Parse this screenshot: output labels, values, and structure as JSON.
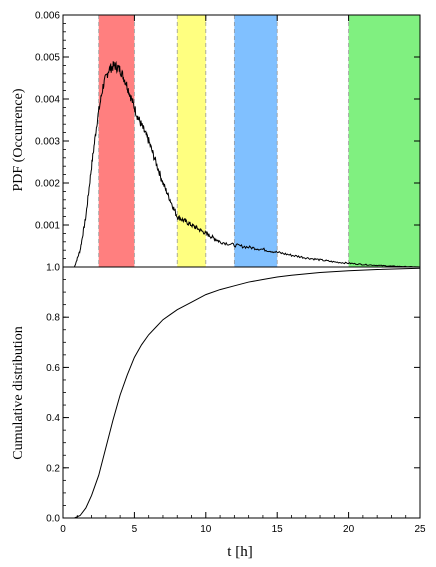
{
  "chart_data": [
    {
      "type": "line",
      "panel": "top",
      "ylabel": "PDF (Occurrence)",
      "xlabel": "",
      "xlim": [
        0,
        25
      ],
      "ylim": [
        0,
        0.006
      ],
      "yticks": [
        0.001,
        0.002,
        0.003,
        0.004,
        0.005,
        0.006
      ],
      "ytick_labels": [
        "0.001",
        "0.002",
        "0.003",
        "0.004",
        "0.005",
        "0.006"
      ],
      "bands": [
        {
          "x0": 2.5,
          "x1": 5.0,
          "color": "#ff7f7f"
        },
        {
          "x0": 8.0,
          "x1": 10.0,
          "color": "#ffff80"
        },
        {
          "x0": 12.0,
          "x1": 15.0,
          "color": "#80c0ff"
        },
        {
          "x0": 20.0,
          "x1": 25.0,
          "color": "#80f080"
        }
      ],
      "series": [
        {
          "x": [
            0.8,
            1.2,
            1.6,
            2.0,
            2.4,
            2.8,
            3.2,
            3.6,
            4.0,
            4.4,
            4.8,
            5.2,
            5.6,
            6.0,
            6.5,
            7.0,
            7.5,
            8.0,
            8.5,
            9.0,
            9.5,
            10.0,
            10.5,
            11.0,
            12.0,
            13.0,
            14.0,
            15.0,
            16.0,
            17.0,
            18.0,
            19.0,
            20.0,
            21.0,
            22.0,
            23.0,
            24.0,
            25.0
          ],
          "y": [
            0.0,
            0.0004,
            0.0012,
            0.0024,
            0.0035,
            0.0043,
            0.0047,
            0.0048,
            0.0047,
            0.0044,
            0.004,
            0.0036,
            0.0033,
            0.003,
            0.0025,
            0.002,
            0.0016,
            0.0012,
            0.0011,
            0.001,
            0.0009,
            0.0008,
            0.0007,
            0.0006,
            0.00052,
            0.00047,
            0.00042,
            0.00035,
            0.00028,
            0.00022,
            0.00017,
            0.00012,
            9e-05,
            6e-05,
            4e-05,
            2e-05,
            1e-05,
            0.0
          ]
        }
      ]
    },
    {
      "type": "line",
      "panel": "bottom",
      "ylabel": "Cumulative distribution",
      "xlabel": "t [h]",
      "xlim": [
        0,
        25
      ],
      "ylim": [
        0,
        1.0
      ],
      "xticks": [
        0,
        5,
        10,
        15,
        20,
        25
      ],
      "xtick_labels": [
        "0",
        "5",
        "10",
        "15",
        "20",
        "25"
      ],
      "yticks": [
        0.0,
        0.2,
        0.4,
        0.6,
        0.8,
        1.0
      ],
      "ytick_labels": [
        "0.0",
        "0.2",
        "0.4",
        "0.6",
        "0.8",
        "1.0"
      ],
      "series": [
        {
          "x": [
            0,
            0.8,
            1.2,
            1.6,
            2.0,
            2.5,
            3.0,
            3.5,
            4.0,
            4.5,
            5.0,
            5.5,
            6.0,
            6.5,
            7.0,
            7.5,
            8.0,
            9.0,
            10.0,
            11.0,
            12.0,
            13.0,
            14.0,
            15.0,
            16.0,
            18.0,
            20.0,
            22.0,
            25.0
          ],
          "y": [
            0.0,
            0.0,
            0.01,
            0.04,
            0.09,
            0.17,
            0.28,
            0.39,
            0.49,
            0.57,
            0.64,
            0.69,
            0.73,
            0.76,
            0.79,
            0.81,
            0.83,
            0.86,
            0.89,
            0.91,
            0.925,
            0.94,
            0.95,
            0.96,
            0.967,
            0.978,
            0.985,
            0.99,
            0.995
          ]
        }
      ]
    }
  ]
}
